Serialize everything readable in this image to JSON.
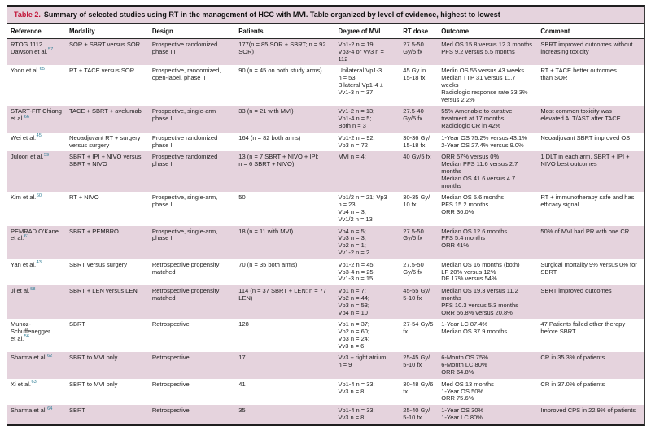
{
  "colors": {
    "stripe": "#e5d3dd",
    "caption_label": "#c2173b",
    "citation": "#2d7d95"
  },
  "caption": {
    "label": "Table 2.",
    "text": "Summary of selected studies using RT in the management of HCC with MVI. Table organized by level of evidence, highest to lowest"
  },
  "table": {
    "columns": [
      {
        "key": "reference",
        "label": "Reference"
      },
      {
        "key": "modality",
        "label": "Modality"
      },
      {
        "key": "design",
        "label": "Design"
      },
      {
        "key": "patients",
        "label": "Patients"
      },
      {
        "key": "mvi",
        "label": "Degree of MVI"
      },
      {
        "key": "dose",
        "label": "RT dose"
      },
      {
        "key": "outcome",
        "label": "Outcome"
      },
      {
        "key": "comment",
        "label": "Comment"
      }
    ],
    "rows": [
      {
        "reference": "RTOG 1112\nDawson et al.",
        "reference_sup": "57",
        "modality": "SOR + SBRT versus SOR",
        "design": "Prospective randomized\nphase III",
        "patients": "177(n = 85 SOR + SBRT; n = 92\nSOR)",
        "mvi": "Vp1-2 n = 19\nVp3-4 or Vv3 n =\n112",
        "dose": "27.5-50\nGy/5 fx",
        "outcome": "Med OS 15.8 versus 12.3 months\nPFS 9.2 versus 5.5 months",
        "comment": "SBRT improved outcomes without\nincreasing toxicity"
      },
      {
        "reference": "Yoon et al.",
        "reference_sup": "65",
        "modality": "RT + TACE versus SOR",
        "design": "Prospective, randomized,\nopen-label, phase II",
        "patients": "90 (n = 45 on both study arms)",
        "mvi": "Unilateral Vp1-3\nn = 53;\nBilateral Vp1-4 ±\nVv1-3 n = 37",
        "dose": "45 Gy in\n15-18 fx",
        "outcome": "Medin OS 55 versus 43 weeks\nMedian TTP 31 versus 11.7\nweeks\nRadiologic response rate 33.3%\nversus 2.2%",
        "comment": "RT + TACE better outcomes\nthan SOR"
      },
      {
        "reference": "START-FIT Chiang\net al.",
        "reference_sup": "66",
        "modality": "TACE + SBRT + avelumab",
        "design": "Prospective, single-arm\nphase II",
        "patients": "33 (n = 21 with MVI)",
        "mvi": "Vv1-2 n = 13;\nVp1-4 n = 5;\nBoth n = 3",
        "dose": "27.5-40\nGy/5 fx",
        "outcome": "55% Amenable to curative\ntreatment at 17 months\nRadiologic CR in 42%",
        "comment": "Most common toxicity was\nelevated ALT/AST after TACE"
      },
      {
        "reference": "Wei et al.",
        "reference_sup": "45",
        "modality": "Neoadjuvant RT + surgery\nversus surgery",
        "design": "Prospective randomized\nphase II",
        "patients": "164 (n = 82 both arms)",
        "mvi": "Vp1-2 n = 92;\nVp3 n = 72",
        "dose": "30-36 Gy/\n15-18 fx",
        "outcome": "1-Year OS 75.2% versus 43.1%\n2-Year OS 27.4% versus 9.0%",
        "comment": "Neoadjuvant SBRT improved OS"
      },
      {
        "reference": "Juloori et al.",
        "reference_sup": "59",
        "modality": "SBRT + IPI + NIVO versus\nSBRT + NIVO",
        "design": "Prospective randomized\nphase I",
        "patients": "13 (n = 7 SBRT + NIVO + IPI;\nn = 6 SBRT + NIVO)",
        "mvi": "MVI n = 4;",
        "dose": "40 Gy/5 fx",
        "outcome": "ORR 57% versus 0%\nMedian PFS 11.6 versus 2.7\nmonths\nMedian OS 41.6 versus 4.7\nmonths",
        "comment": "1 DLT in each arm, SBRT + IPI +\nNIVO best outcomes"
      },
      {
        "reference": "Kim et al.",
        "reference_sup": "60",
        "modality": "RT + NIVO",
        "design": "Prospective, single-arm,\nphase II",
        "patients": "50",
        "mvi": "Vp1/2 n = 21; Vp3\nn = 23;\nVp4 n = 3;\nVv1/2 n = 13",
        "dose": "30-35 Gy/\n10 fx",
        "outcome": "Median OS 5.6 months\nPFS 15.2 months\nORR 36.0%",
        "comment": "RT + immunotherapy safe and has\nefficacy signal"
      },
      {
        "reference": "PEMRAD O'Kane\net al.",
        "reference_sup": "61",
        "modality": "SBRT + PEMBRO",
        "design": "Prospective, single-arm,\nphase II",
        "patients": "18 (n = 11 with MVI)",
        "mvi": "Vp4 n = 5;\nVp3 n = 3;\nVp2 n = 1;\nVv1-2 n = 2",
        "dose": "27.5-50\nGy/5 fx",
        "outcome": "Median OS 12.6 months\nPFS 5.4 months\nORR 41%",
        "comment": "50% of MVI had PR with one CR"
      },
      {
        "reference": "Yan et al.",
        "reference_sup": "43",
        "modality": "SBRT versus surgery",
        "design": "Retrospective propensity\nmatched",
        "patients": "70 (n = 35 both arms)",
        "mvi": "Vp1-2 n = 45;\nVp3-4 n = 25;\nVv1-3 n = 15",
        "dose": "27.5-50\nGy/6 fx",
        "outcome": "Median OS 16 months (both)\nLF 20% versus 12%\nDF 17% versus 54%",
        "comment": "Surgical mortality 9% versus 0% for\nSBRT"
      },
      {
        "reference": "Ji et al.",
        "reference_sup": "58",
        "modality": "SBRT + LEN versus LEN",
        "design": "Retrospective propensity\nmatched",
        "patients": "114 (n = 37 SBRT + LEN; n = 77\nLEN)",
        "mvi": "Vp1 n = 7;\nVp2 n = 44;\nVp3 n = 53;\nVp4 n = 10",
        "dose": "45-55 Gy/\n5-10 fx",
        "outcome": "Median OS 19.3 versus 11.2\nmonths\nPFS 10.3 versus 5.3 months\nORR 56.8% versus 20.8%",
        "comment": "SBRT improved outcomes"
      },
      {
        "reference": "Munoz-\nSchuffenegger\net al.",
        "reference_sup": "56",
        "modality": "SBRT",
        "design": "Retrospective",
        "patients": "128",
        "mvi": "Vp1 n = 37;\nVp2 n = 60;\nVp3 n = 24;\nVv3 n = 6",
        "dose": "27-54 Gy/5\nfx",
        "outcome": "1-Year LC 87.4%\nMedian OS 37.9 months",
        "comment": "47 Patients failed other therapy\nbefore SBRT"
      },
      {
        "reference": "Sharma et al.",
        "reference_sup": "62",
        "modality": "SBRT to MVI only",
        "design": "Retrospective",
        "patients": "17",
        "mvi": "Vv3 + right atrium\nn = 9",
        "dose": "25-45 Gy/\n5-10 fx",
        "outcome": "6-Month OS 75%\n6-Month LC 80%\nORR 64.8%",
        "comment": "CR in 35.3% of patients"
      },
      {
        "reference": "Xi et al.",
        "reference_sup": "63",
        "modality": "SBRT to MVI only",
        "design": "Retrospective",
        "patients": "41",
        "mvi": "Vp1-4 n = 33;\nVv3 n = 8",
        "dose": "30-48 Gy/6\nfx",
        "outcome": "Med OS 13 months\n1-Year OS 50%\nORR 75.6%",
        "comment": "CR in 37.0% of patients"
      },
      {
        "reference": "Sharma et al.",
        "reference_sup": "64",
        "modality": "SBRT",
        "design": "Retrospective",
        "patients": "35",
        "mvi": "Vp1-4 n = 33;\nVv3 n = 8",
        "dose": "25-40 Gy/\n5-10 fx",
        "outcome": "1-Year OS 30%\n1-Year LC 80%",
        "comment": "Improved CPS in 22.9% of patients"
      }
    ]
  }
}
